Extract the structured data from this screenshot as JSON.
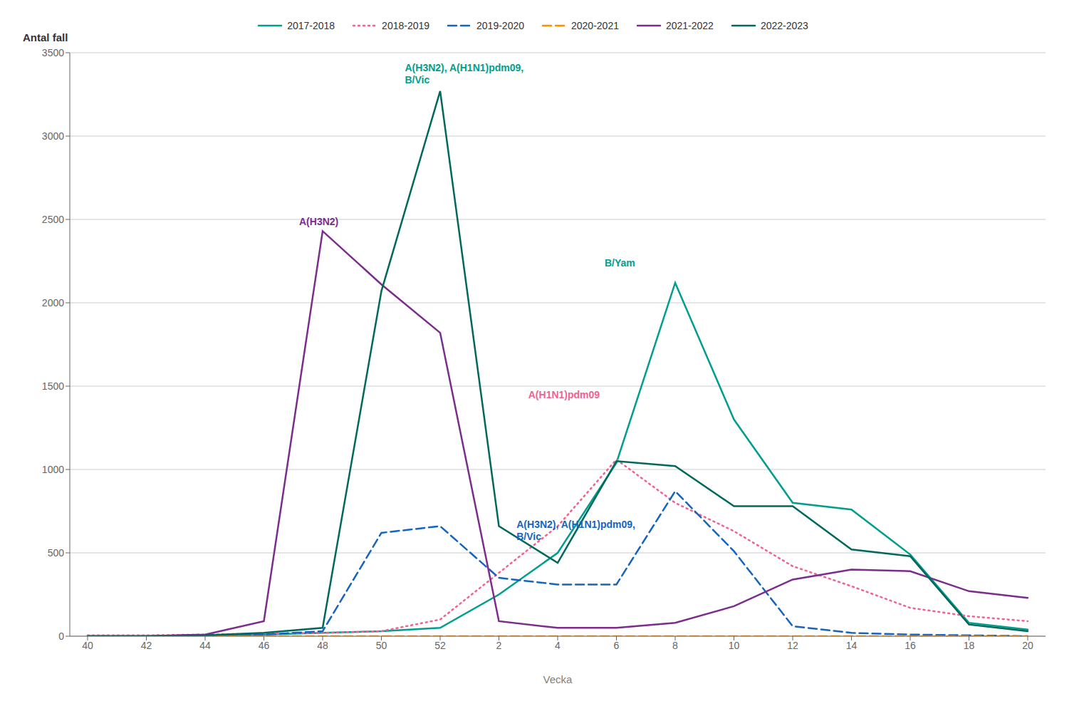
{
  "chart_data": {
    "type": "line",
    "x_label": "Vecka",
    "y_label": "Antal fall",
    "categories": [
      "40",
      "42",
      "44",
      "46",
      "48",
      "50",
      "52",
      "2",
      "4",
      "6",
      "8",
      "10",
      "12",
      "14",
      "16",
      "18",
      "20"
    ],
    "series": [
      {
        "name": "2017-2018",
        "color": "#009E8E",
        "line_style": "solid",
        "values": [
          0,
          0,
          5,
          10,
          20,
          30,
          50,
          250,
          500,
          1040,
          2120,
          1300,
          800,
          760,
          490,
          80,
          40
        ]
      },
      {
        "name": "2018-2019",
        "color": "#F06292",
        "line_style": "dotted",
        "values": [
          5,
          5,
          10,
          15,
          20,
          30,
          100,
          380,
          660,
          1060,
          800,
          630,
          420,
          300,
          170,
          120,
          90
        ]
      },
      {
        "name": "2019-2020",
        "color": "#1565C0",
        "line_style": "dashed",
        "values": [
          0,
          0,
          5,
          10,
          30,
          620,
          660,
          350,
          310,
          310,
          870,
          510,
          60,
          20,
          10,
          5,
          0
        ]
      },
      {
        "name": "2020-2021",
        "color": "#FF8F00",
        "line_style": "dashed",
        "values": [
          0,
          0,
          0,
          0,
          0,
          0,
          0,
          0,
          0,
          0,
          0,
          0,
          0,
          0,
          0,
          0,
          0
        ]
      },
      {
        "name": "2021-2022",
        "color": "#7B2D8B",
        "line_style": "solid",
        "values": [
          0,
          0,
          10,
          90,
          2430,
          2110,
          1820,
          90,
          50,
          50,
          80,
          180,
          340,
          400,
          390,
          270,
          230
        ]
      },
      {
        "name": "2022-2023",
        "color": "#00695C",
        "line_style": "solid",
        "values": [
          0,
          0,
          5,
          20,
          50,
          2070,
          3270,
          660,
          440,
          1050,
          1020,
          780,
          780,
          520,
          480,
          70,
          30
        ]
      }
    ],
    "ylim": [
      0,
      3500
    ],
    "yticks": [
      0,
      500,
      1000,
      1500,
      2000,
      2500,
      3000,
      3500
    ],
    "grid": true,
    "legend": "top",
    "annotations": [
      {
        "text": "A(H3N2)",
        "x": 3.6,
        "y": 2450,
        "color": "#7B2D8B"
      },
      {
        "text": "A(H3N2), A(H1N1)pdm09,\nB/Vic",
        "x": 5.4,
        "y": 3300,
        "color": "#009E8E"
      },
      {
        "text": "A(H1N1)pdm09",
        "x": 7.5,
        "y": 1410,
        "color": "#F06292"
      },
      {
        "text": "B/Yam",
        "x": 8.8,
        "y": 2200,
        "color": "#009E8E"
      },
      {
        "text": "A(H3N2), A(H1N1)pdm09,\nB/Vic",
        "x": 7.3,
        "y": 560,
        "color": "#1565C0"
      }
    ]
  }
}
